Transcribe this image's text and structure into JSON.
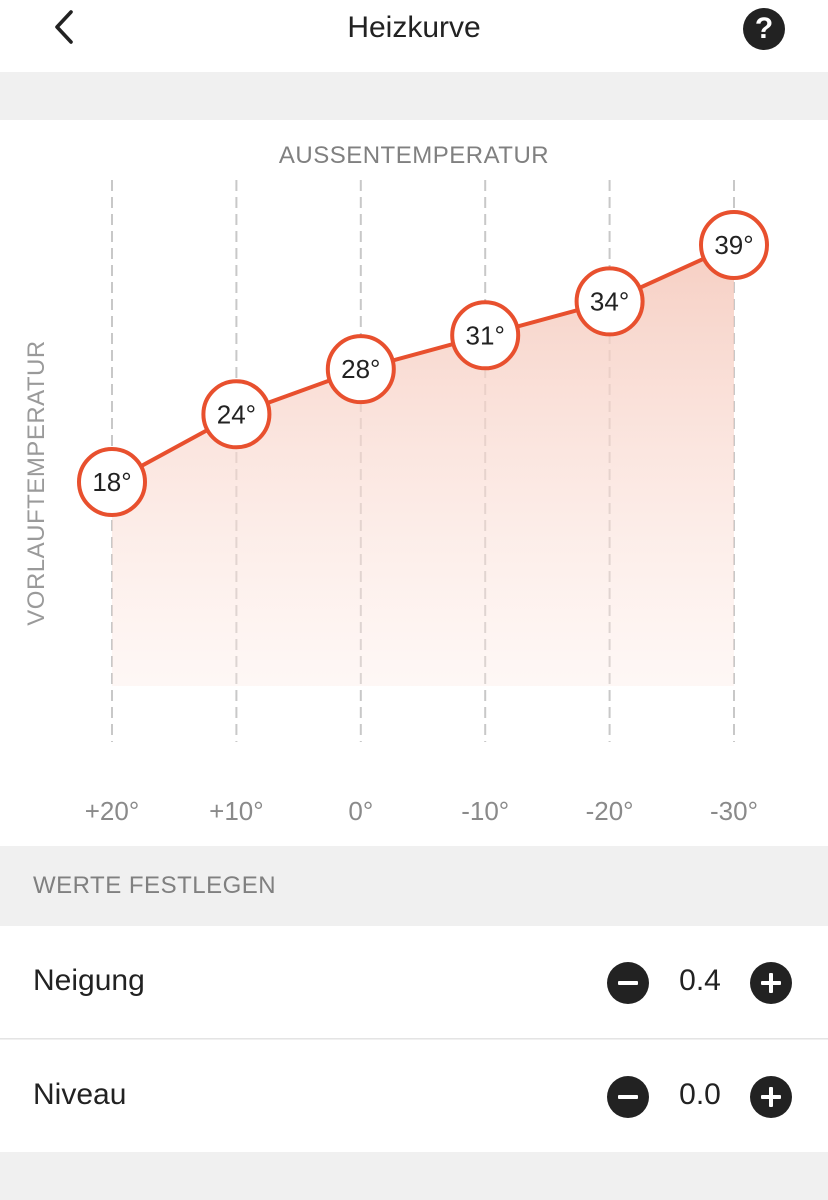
{
  "header": {
    "title": "Heizkurve",
    "help_label": "?"
  },
  "chart_data": {
    "type": "line",
    "title": "",
    "xlabel": "AUSSENTEMPERATUR",
    "ylabel": "VORLAUFTEMPERATUR",
    "categories": [
      "+20°",
      "+10°",
      "0°",
      "-10°",
      "-20°",
      "-30°"
    ],
    "series": [
      {
        "values": [
          18,
          24,
          28,
          31,
          34,
          39
        ]
      }
    ],
    "point_labels": [
      "18°",
      "24°",
      "28°",
      "31°",
      "34°",
      "39°"
    ],
    "grid": "vertical-dashed",
    "colors": {
      "line": "#e8502e",
      "fill": "#f5c9bc"
    }
  },
  "settings": {
    "section_title": "WERTE FESTLEGEN",
    "rows": [
      {
        "label": "Neigung",
        "value": "0.4"
      },
      {
        "label": "Niveau",
        "value": "0.0"
      }
    ]
  },
  "colors": {
    "accent": "#e8502e",
    "background": "#f0f0f0"
  }
}
